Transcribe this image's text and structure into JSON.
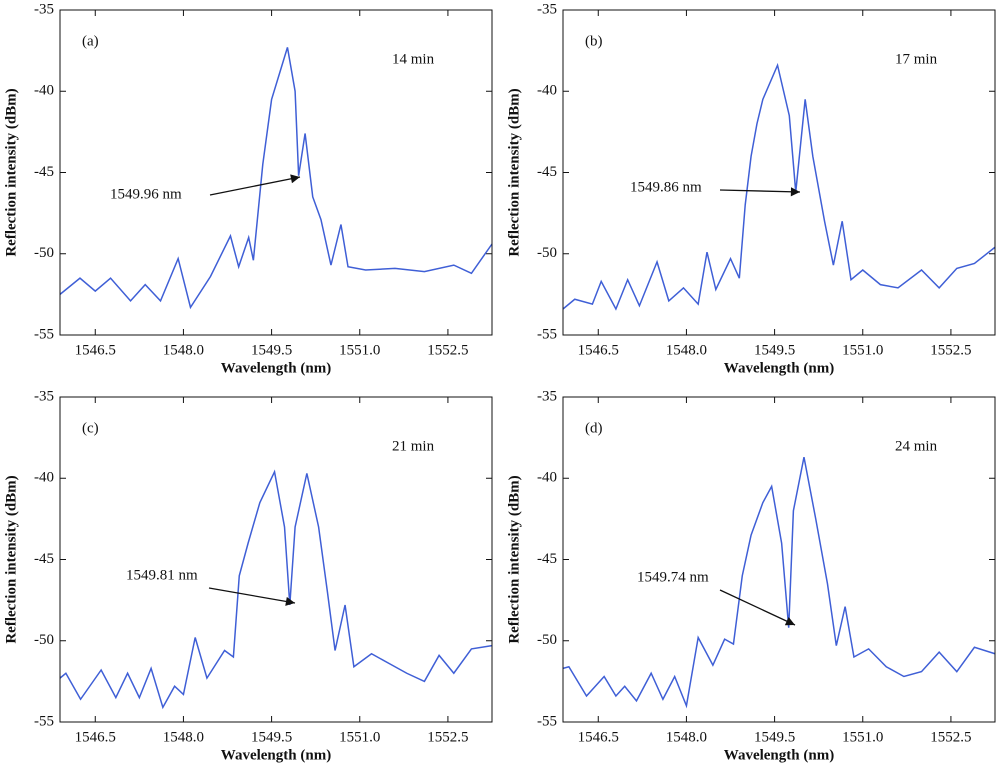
{
  "chart_data": [
    {
      "type": "line",
      "panel_label": "(a)",
      "time_label": "14 min",
      "annotation": "1549.96 nm",
      "x_label": "Wavelength (nm)",
      "y_label": "Reflection intensity (dBm)",
      "color": "#3f5fd6",
      "xlim": [
        1545.9,
        1553.25
      ],
      "ylim": [
        -55,
        -35
      ],
      "xticks": [
        1546.5,
        {
          "value": 1548,
          "label": "1548.0"
        },
        1549.5,
        {
          "value": 1551,
          "label": "1551.0"
        },
        1552.5
      ],
      "yticks": [
        -35,
        -40,
        -45,
        -50,
        -55
      ],
      "x": [
        1545.9,
        1546.24,
        1546.5,
        1546.76,
        1547.1,
        1547.35,
        1547.61,
        1547.91,
        1548.12,
        1548.46,
        1548.8,
        1548.94,
        1549.11,
        1549.19,
        1549.35,
        1549.5,
        1549.77,
        1549.9,
        1549.96,
        1550.07,
        1550.2,
        1550.34,
        1550.51,
        1550.68,
        1550.8,
        1551.1,
        1551.6,
        1552.1,
        1552.6,
        1552.9,
        1553.25
      ],
      "values": [
        -52.5,
        -51.5,
        -52.3,
        -51.5,
        -52.9,
        -51.9,
        -52.9,
        -50.3,
        -53.3,
        -51.4,
        -48.9,
        -50.8,
        -49,
        -50.4,
        -44.5,
        -40.5,
        -37.3,
        -40,
        -45.2,
        -42.6,
        -46.5,
        -47.9,
        -50.7,
        -48.2,
        -50.8,
        -51,
        -50.9,
        -51.1,
        -50.7,
        -51.2,
        -49.4
      ]
    },
    {
      "type": "line",
      "panel_label": "(b)",
      "time_label": "17 min",
      "annotation": "1549.86 nm",
      "x_label": "Wavelength (nm)",
      "y_label": "Reflection intensity (dBm)",
      "color": "#3f5fd6",
      "xlim": [
        1545.9,
        1553.25
      ],
      "ylim": [
        -55,
        -35
      ],
      "xticks": [
        1546.5,
        {
          "value": 1548,
          "label": "1548.0"
        },
        1549.5,
        {
          "value": 1551,
          "label": "1551.0"
        },
        1552.5
      ],
      "yticks": [
        -35,
        -40,
        -45,
        -50,
        -55
      ],
      "x": [
        1545.9,
        1546.1,
        1546.4,
        1546.55,
        1546.8,
        1547.0,
        1547.2,
        1547.5,
        1547.7,
        1547.95,
        1548.2,
        1548.35,
        1548.5,
        1548.75,
        1548.9,
        1549.0,
        1549.1,
        1549.2,
        1549.3,
        1549.55,
        1549.75,
        1549.86,
        1550.02,
        1550.15,
        1550.35,
        1550.5,
        1550.65,
        1550.8,
        1551.0,
        1551.3,
        1551.6,
        1552.0,
        1552.3,
        1552.6,
        1552.9,
        1553.25
      ],
      "values": [
        -53.4,
        -52.8,
        -53.1,
        -51.7,
        -53.4,
        -51.6,
        -53.2,
        -50.5,
        -52.9,
        -52.1,
        -53.1,
        -49.9,
        -52.2,
        -50.3,
        -51.5,
        -47,
        -44,
        -42,
        -40.5,
        -38.4,
        -41.5,
        -46.2,
        -40.5,
        -44,
        -48,
        -50.7,
        -48,
        -51.6,
        -51,
        -51.9,
        -52.1,
        -51,
        -52.1,
        -50.9,
        -50.6,
        -49.6
      ]
    },
    {
      "type": "line",
      "panel_label": "(c)",
      "time_label": "21 min",
      "annotation": "1549.81 nm",
      "x_label": "Wavelength (nm)",
      "y_label": "Reflection intensity (dBm)",
      "color": "#3f5fd6",
      "xlim": [
        1545.9,
        1553.25
      ],
      "ylim": [
        -55,
        -35
      ],
      "xticks": [
        1546.5,
        {
          "value": 1548,
          "label": "1548.0"
        },
        1549.5,
        {
          "value": 1551,
          "label": "1551.0"
        },
        1552.5
      ],
      "yticks": [
        -35,
        -40,
        -45,
        -50,
        -55
      ],
      "x": [
        1545.9,
        1546.0,
        1546.25,
        1546.6,
        1546.85,
        1547.05,
        1547.25,
        1547.45,
        1547.65,
        1547.85,
        1548.0,
        1548.2,
        1548.4,
        1548.7,
        1548.85,
        1548.95,
        1549.1,
        1549.3,
        1549.55,
        1549.72,
        1549.81,
        1549.9,
        1550.1,
        1550.3,
        1550.45,
        1550.58,
        1550.75,
        1550.9,
        1551.2,
        1551.5,
        1551.8,
        1552.1,
        1552.35,
        1552.6,
        1552.9,
        1553.25
      ],
      "values": [
        -52.3,
        -52,
        -53.6,
        -51.8,
        -53.5,
        -52,
        -53.5,
        -51.7,
        -54.1,
        -52.8,
        -53.3,
        -49.8,
        -52.3,
        -50.6,
        -51,
        -46,
        -44,
        -41.5,
        -39.6,
        -43,
        -47.8,
        -43,
        -39.7,
        -43,
        -47,
        -50.6,
        -47.8,
        -51.6,
        -50.8,
        -51.4,
        -52,
        -52.5,
        -50.9,
        -52,
        -50.5,
        -50.3
      ]
    },
    {
      "type": "line",
      "panel_label": "(d)",
      "time_label": "24 min",
      "annotation": "1549.74 nm",
      "x_label": "Wavelength (nm)",
      "y_label": "Reflection intensity (dBm)",
      "color": "#3f5fd6",
      "xlim": [
        1545.9,
        1553.25
      ],
      "ylim": [
        -55,
        -35
      ],
      "xticks": [
        1546.5,
        {
          "value": 1548,
          "label": "1548.0"
        },
        1549.5,
        {
          "value": 1551,
          "label": "1551.0"
        },
        1552.5
      ],
      "yticks": [
        -35,
        -40,
        -45,
        -50,
        -55
      ],
      "x": [
        1545.9,
        1546.0,
        1546.3,
        1546.6,
        1546.8,
        1546.95,
        1547.15,
        1547.4,
        1547.6,
        1547.8,
        1548.0,
        1548.2,
        1548.45,
        1548.65,
        1548.8,
        1548.95,
        1549.1,
        1549.3,
        1549.45,
        1549.62,
        1549.74,
        1549.82,
        1550.0,
        1550.2,
        1550.4,
        1550.55,
        1550.7,
        1550.85,
        1551.1,
        1551.4,
        1551.7,
        1552.0,
        1552.3,
        1552.6,
        1552.9,
        1553.25
      ],
      "values": [
        -51.7,
        -51.6,
        -53.4,
        -52.2,
        -53.4,
        -52.8,
        -53.7,
        -52,
        -53.6,
        -52.2,
        -54,
        -49.8,
        -51.5,
        -49.9,
        -50.2,
        -46,
        -43.5,
        -41.5,
        -40.5,
        -44,
        -49.2,
        -42,
        -38.7,
        -42.5,
        -46.5,
        -50.3,
        -47.9,
        -51,
        -50.5,
        -51.6,
        -52.2,
        -51.9,
        -50.7,
        -51.9,
        -50.4,
        -50.8
      ]
    }
  ]
}
